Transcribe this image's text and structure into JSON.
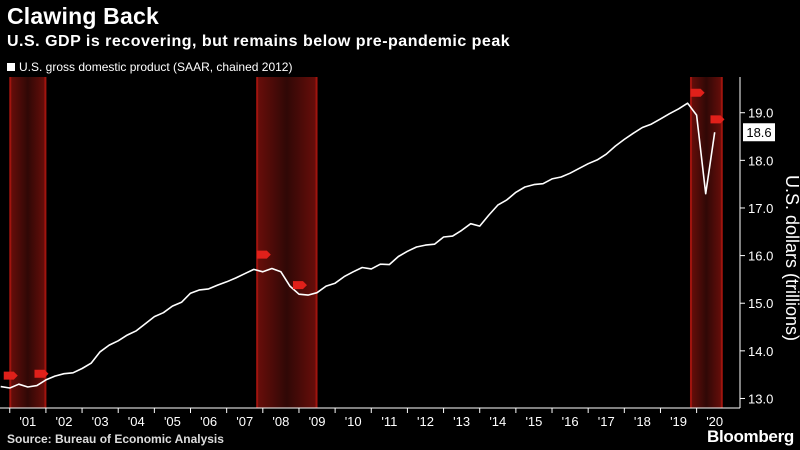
{
  "chart_data": {
    "type": "line",
    "title": "Clawing Back",
    "subtitle": "U.S. GDP is recovering, but remains below pre-pandemic peak",
    "xlabel": "",
    "ylabel": "U.S. dollars (trillions)",
    "ylim": [
      12.8,
      19.75
    ],
    "yticks": [
      13.0,
      14.0,
      15.0,
      16.0,
      17.0,
      18.0,
      19.0
    ],
    "xticks": [
      "'01",
      "'02",
      "'03",
      "'04",
      "'05",
      "'06",
      "'07",
      "'08",
      "'09",
      "'10",
      "'11",
      "'12",
      "'13",
      "'14",
      "'15",
      "'16",
      "'17",
      "'18",
      "'19",
      "'20"
    ],
    "last_value_label": "18.6",
    "recessions": [
      {
        "start": 2001.0,
        "end": 2002.0
      },
      {
        "start": 2007.83,
        "end": 2009.5
      },
      {
        "start": 2019.83,
        "end": 2020.71
      }
    ],
    "series": [
      {
        "name": "U.S. gross domestic product (SAAR, chained 2012)",
        "color": "#ffffff",
        "points": [
          [
            2000.75,
            13.25
          ],
          [
            2001.0,
            13.22
          ],
          [
            2001.25,
            13.3
          ],
          [
            2001.5,
            13.24
          ],
          [
            2001.75,
            13.27
          ],
          [
            2002.0,
            13.39
          ],
          [
            2002.25,
            13.47
          ],
          [
            2002.5,
            13.52
          ],
          [
            2002.75,
            13.54
          ],
          [
            2003.0,
            13.63
          ],
          [
            2003.25,
            13.74
          ],
          [
            2003.5,
            13.98
          ],
          [
            2003.75,
            14.12
          ],
          [
            2004.0,
            14.21
          ],
          [
            2004.25,
            14.33
          ],
          [
            2004.5,
            14.42
          ],
          [
            2004.75,
            14.57
          ],
          [
            2005.0,
            14.72
          ],
          [
            2005.25,
            14.8
          ],
          [
            2005.5,
            14.94
          ],
          [
            2005.75,
            15.02
          ],
          [
            2006.0,
            15.21
          ],
          [
            2006.25,
            15.28
          ],
          [
            2006.5,
            15.3
          ],
          [
            2006.75,
            15.38
          ],
          [
            2007.0,
            15.45
          ],
          [
            2007.25,
            15.53
          ],
          [
            2007.5,
            15.62
          ],
          [
            2007.75,
            15.71
          ],
          [
            2008.0,
            15.66
          ],
          [
            2008.25,
            15.73
          ],
          [
            2008.5,
            15.66
          ],
          [
            2008.75,
            15.36
          ],
          [
            2009.0,
            15.19
          ],
          [
            2009.25,
            15.17
          ],
          [
            2009.5,
            15.22
          ],
          [
            2009.75,
            15.36
          ],
          [
            2010.0,
            15.42
          ],
          [
            2010.25,
            15.56
          ],
          [
            2010.5,
            15.66
          ],
          [
            2010.75,
            15.75
          ],
          [
            2011.0,
            15.72
          ],
          [
            2011.25,
            15.82
          ],
          [
            2011.5,
            15.81
          ],
          [
            2011.75,
            15.98
          ],
          [
            2012.0,
            16.09
          ],
          [
            2012.25,
            16.18
          ],
          [
            2012.5,
            16.22
          ],
          [
            2012.75,
            16.24
          ],
          [
            2013.0,
            16.39
          ],
          [
            2013.25,
            16.41
          ],
          [
            2013.5,
            16.53
          ],
          [
            2013.75,
            16.67
          ],
          [
            2014.0,
            16.62
          ],
          [
            2014.25,
            16.85
          ],
          [
            2014.5,
            17.06
          ],
          [
            2014.75,
            17.17
          ],
          [
            2015.0,
            17.33
          ],
          [
            2015.25,
            17.44
          ],
          [
            2015.5,
            17.49
          ],
          [
            2015.75,
            17.51
          ],
          [
            2016.0,
            17.61
          ],
          [
            2016.25,
            17.65
          ],
          [
            2016.5,
            17.73
          ],
          [
            2016.75,
            17.83
          ],
          [
            2017.0,
            17.93
          ],
          [
            2017.25,
            18.01
          ],
          [
            2017.5,
            18.13
          ],
          [
            2017.75,
            18.3
          ],
          [
            2018.0,
            18.44
          ],
          [
            2018.25,
            18.57
          ],
          [
            2018.5,
            18.69
          ],
          [
            2018.75,
            18.76
          ],
          [
            2019.0,
            18.87
          ],
          [
            2019.25,
            18.98
          ],
          [
            2019.5,
            19.08
          ],
          [
            2019.75,
            19.2
          ],
          [
            2020.0,
            18.95
          ],
          [
            2020.25,
            17.3
          ],
          [
            2020.5,
            18.59
          ]
        ]
      }
    ]
  },
  "legend": {
    "label": "U.S. gross domestic product (SAAR, chained 2012)"
  },
  "source": "Source: Bureau of Economic Analysis",
  "brand": "Bloomberg"
}
